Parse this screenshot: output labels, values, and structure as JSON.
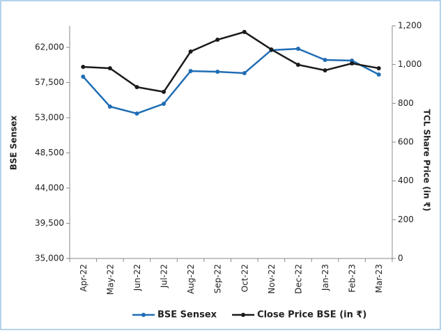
{
  "chart_data": {
    "type": "line",
    "categories": [
      "Apr-22",
      "May-22",
      "Jun-22",
      "Jul-22",
      "Aug-22",
      "Sep-22",
      "Oct-22",
      "Nov-22",
      "Dec-22",
      "Jan-23",
      "Feb-23",
      "Mar-23"
    ],
    "series": [
      {
        "name": "BSE Sensex",
        "color": "#1f6db5",
        "values": [
          58257,
          54426,
          53535,
          54782,
          58970,
          58881,
          58703,
          61644,
          61822,
          60396,
          60307,
          58525
        ]
      },
      {
        "name": "Close Price BSE (in ₹)",
        "color": "#1a1a1a",
        "axis": "y2",
        "values": [
          988,
          981,
          884,
          859,
          1067,
          1128,
          1168,
          1078,
          999,
          970,
          1006,
          981
        ]
      }
    ],
    "ylabel": "BSE Sensex",
    "y2label": "TCL Share Price (in ₹)",
    "ylim": [
      35000,
      64760
    ],
    "yticks": [
      {
        "value": 35000,
        "label": "35,000"
      },
      {
        "value": 39500,
        "label": "39,500"
      },
      {
        "value": 44000,
        "label": "44,000"
      },
      {
        "value": 48500,
        "label": "48,500"
      },
      {
        "value": 53000,
        "label": "53,000"
      },
      {
        "value": 57500,
        "label": "57,500"
      },
      {
        "value": 62000,
        "label": "62,000"
      }
    ],
    "y2lim": [
      0,
      1200
    ],
    "y2ticks": [
      0,
      200,
      400,
      600,
      800,
      {
        "value": 1000,
        "label": "1,000"
      },
      {
        "value": 1200,
        "label": "1,200"
      }
    ],
    "grid": false,
    "legend": "bottom"
  }
}
